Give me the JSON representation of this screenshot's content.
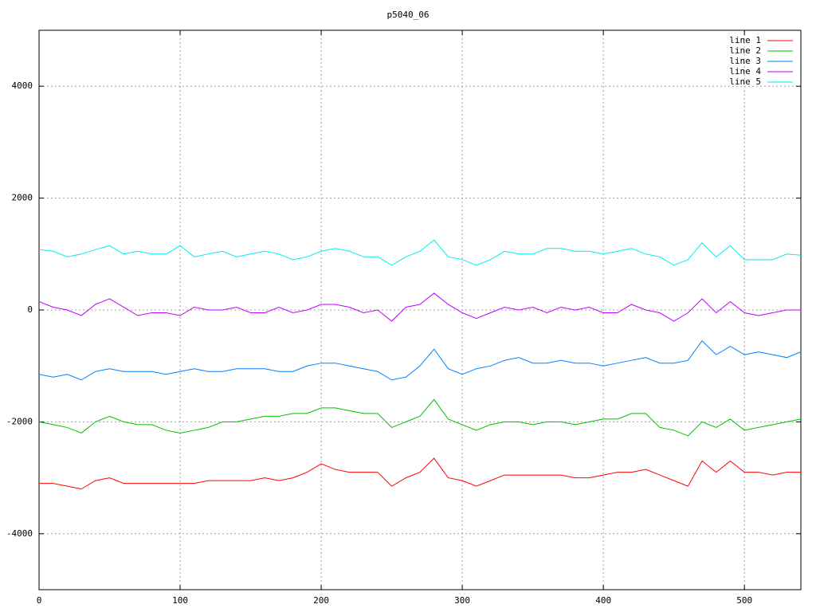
{
  "chart_data": {
    "type": "line",
    "title": "p5040_06",
    "x": [
      0,
      10,
      20,
      30,
      40,
      50,
      60,
      70,
      80,
      90,
      100,
      110,
      120,
      130,
      140,
      150,
      160,
      170,
      180,
      190,
      200,
      210,
      220,
      230,
      240,
      250,
      260,
      270,
      280,
      290,
      300,
      310,
      320,
      330,
      340,
      350,
      360,
      370,
      380,
      390,
      400,
      410,
      420,
      430,
      440,
      450,
      460,
      470,
      480,
      490,
      500,
      510,
      520,
      530,
      540
    ],
    "xlim": [
      0,
      540
    ],
    "xticks": [
      0,
      100,
      200,
      300,
      400,
      500
    ],
    "ylim": [
      -5000,
      5000
    ],
    "yticks": [
      -4000,
      -2000,
      0,
      2000,
      4000
    ],
    "grid": true,
    "legend": "top-right",
    "series": [
      {
        "name": "line 1",
        "color": "#ff0000",
        "values": [
          -3100,
          -3100,
          -3150,
          -3200,
          -3050,
          -3000,
          -3100,
          -3100,
          -3100,
          -3100,
          -3100,
          -3100,
          -3050,
          -3050,
          -3050,
          -3050,
          -3000,
          -3050,
          -3000,
          -2900,
          -2750,
          -2850,
          -2900,
          -2900,
          -2900,
          -3150,
          -3000,
          -2900,
          -2650,
          -3000,
          -3050,
          -3150,
          -3050,
          -2950,
          -2950,
          -2950,
          -2950,
          -2950,
          -3000,
          -3000,
          -2950,
          -2900,
          -2900,
          -2850,
          -2950,
          -3050,
          -3150,
          -2700,
          -2900,
          -2700,
          -2900,
          -2900,
          -2950,
          -2900,
          -2900
        ]
      },
      {
        "name": "line 2",
        "color": "#00c000",
        "values": [
          -2000,
          -2050,
          -2100,
          -2200,
          -2000,
          -1900,
          -2000,
          -2050,
          -2050,
          -2150,
          -2200,
          -2150,
          -2100,
          -2000,
          -2000,
          -1950,
          -1900,
          -1900,
          -1850,
          -1850,
          -1750,
          -1750,
          -1800,
          -1850,
          -1850,
          -2100,
          -2000,
          -1900,
          -1600,
          -1950,
          -2050,
          -2150,
          -2050,
          -2000,
          -2000,
          -2050,
          -2000,
          -2000,
          -2050,
          -2000,
          -1950,
          -1950,
          -1850,
          -1850,
          -2100,
          -2150,
          -2250,
          -2000,
          -2100,
          -1950,
          -2150,
          -2100,
          -2050,
          -2000,
          -1950
        ]
      },
      {
        "name": "line 3",
        "color": "#0080ff",
        "values": [
          -1150,
          -1200,
          -1150,
          -1250,
          -1100,
          -1050,
          -1100,
          -1100,
          -1100,
          -1150,
          -1100,
          -1050,
          -1100,
          -1100,
          -1050,
          -1050,
          -1050,
          -1100,
          -1100,
          -1000,
          -950,
          -950,
          -1000,
          -1050,
          -1100,
          -1250,
          -1200,
          -1000,
          -700,
          -1050,
          -1150,
          -1050,
          -1000,
          -900,
          -850,
          -950,
          -950,
          -900,
          -950,
          -950,
          -1000,
          -950,
          -900,
          -850,
          -950,
          -950,
          -900,
          -550,
          -800,
          -650,
          -800,
          -750,
          -800,
          -850,
          -750
        ]
      },
      {
        "name": "line 4",
        "color": "#c000ff",
        "values": [
          150,
          50,
          0,
          -100,
          100,
          200,
          50,
          -100,
          -50,
          -50,
          -100,
          50,
          0,
          0,
          50,
          -50,
          -50,
          50,
          -50,
          0,
          100,
          100,
          50,
          -50,
          0,
          -200,
          50,
          100,
          300,
          100,
          -50,
          -150,
          -50,
          50,
          0,
          50,
          -50,
          50,
          0,
          50,
          -50,
          -50,
          100,
          0,
          -50,
          -200,
          -50,
          200,
          -50,
          150,
          -50,
          -100,
          -50,
          0,
          0
        ]
      },
      {
        "name": "line 5",
        "color": "#00eeee",
        "values": [
          1080,
          1050,
          950,
          1000,
          1080,
          1150,
          1000,
          1050,
          1000,
          1000,
          1150,
          950,
          1000,
          1050,
          950,
          1000,
          1050,
          1000,
          900,
          950,
          1050,
          1100,
          1050,
          950,
          950,
          800,
          950,
          1050,
          1250,
          950,
          900,
          800,
          900,
          1050,
          1000,
          1000,
          1100,
          1100,
          1050,
          1050,
          1000,
          1050,
          1100,
          1000,
          950,
          800,
          900,
          1200,
          950,
          1150,
          900,
          900,
          900,
          1000,
          980
        ]
      }
    ]
  }
}
